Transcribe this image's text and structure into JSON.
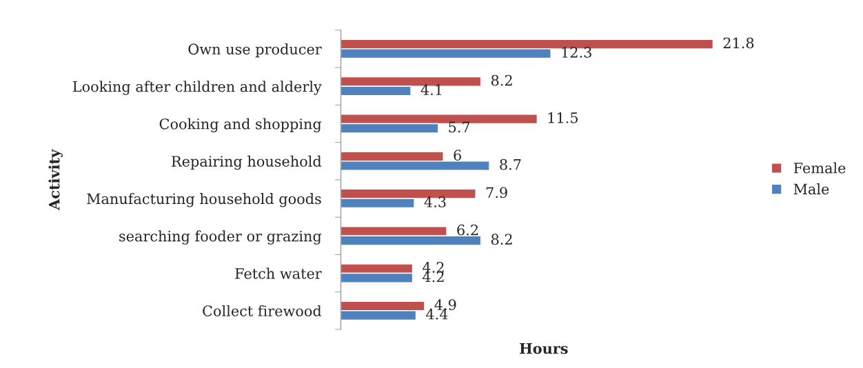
{
  "chart_data": {
    "type": "bar",
    "orientation": "horizontal",
    "xlabel": "Hours",
    "ylabel": "Activity",
    "categories": [
      "Own use producer",
      "Looking after children and alderly",
      "Cooking and shopping",
      "Repairing household",
      "Manufacturing household goods",
      "searching fooder or grazing",
      "Fetch water",
      "Collect firewood"
    ],
    "series": [
      {
        "name": "Female",
        "color": "#c0504d",
        "values": [
          21.8,
          8.2,
          11.5,
          6,
          7.9,
          6.2,
          4.2,
          4.9
        ]
      },
      {
        "name": "Male",
        "color": "#4f81bd",
        "values": [
          12.3,
          4.1,
          5.7,
          8.7,
          4.3,
          8.2,
          4.2,
          4.4
        ]
      }
    ],
    "data_labels": true,
    "grid": false,
    "legend": "right"
  }
}
